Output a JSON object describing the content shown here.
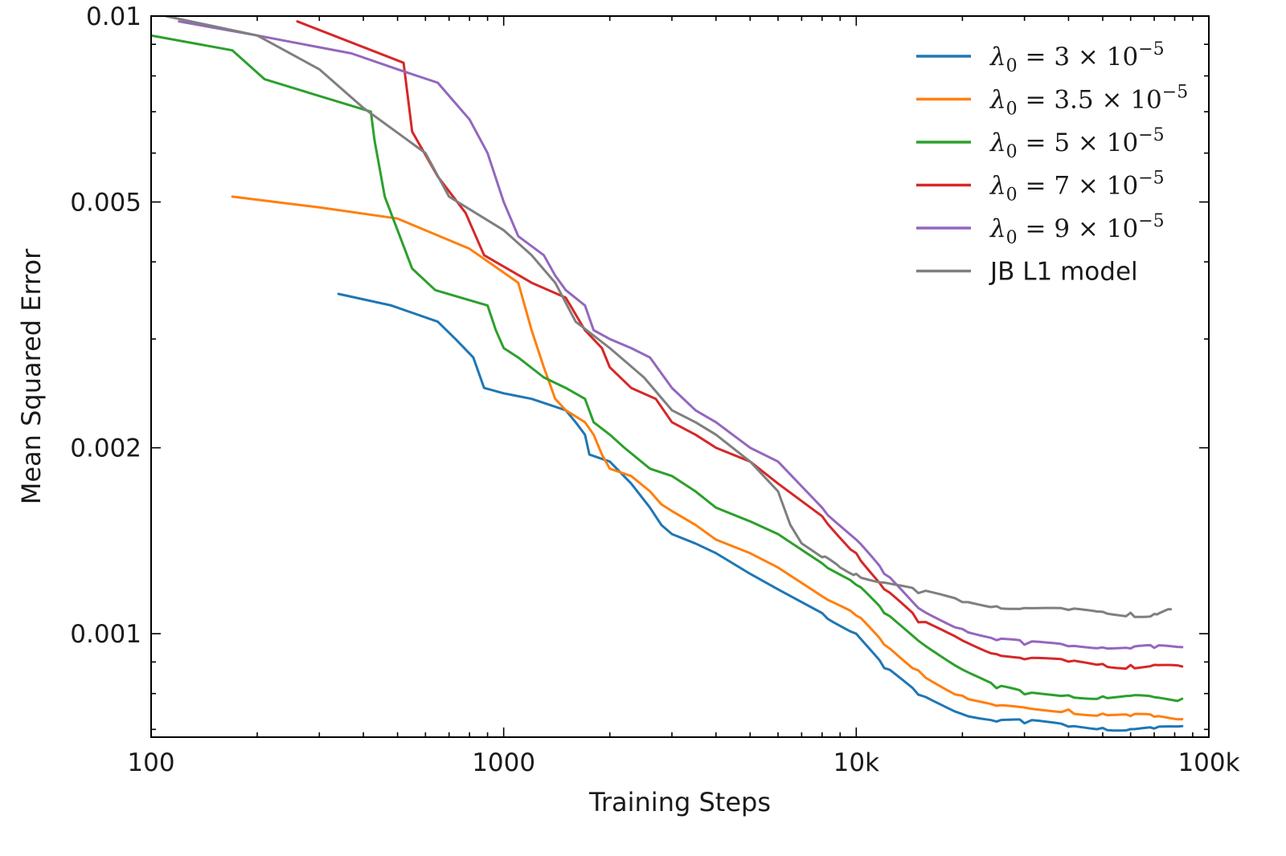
{
  "chart_data": {
    "type": "line",
    "title": "",
    "xlabel": "Training Steps",
    "ylabel": "Mean Squared Error",
    "xscale": "log",
    "yscale": "log",
    "xlim": [
      100,
      100000
    ],
    "ylim": [
      0.00068,
      0.01
    ],
    "xticks": [
      {
        "value": 100,
        "label": "100"
      },
      {
        "value": 1000,
        "label": "1000"
      },
      {
        "value": 10000,
        "label": "10k"
      },
      {
        "value": 100000,
        "label": "100k"
      }
    ],
    "yticks": [
      {
        "value": 0.001,
        "label": "0.001"
      },
      {
        "value": 0.002,
        "label": "0.002"
      },
      {
        "value": 0.005,
        "label": "0.005"
      },
      {
        "value": 0.01,
        "label": "0.01"
      }
    ],
    "grid": false,
    "legend_position": "top-right",
    "series": [
      {
        "name": "λ0 = 3 × 10−5",
        "legend": {
          "sym": "λ",
          "sub": "0",
          "rest": " = 3 × 10",
          "sup": "−5"
        },
        "color": "#1f77b4",
        "x": [
          340,
          480,
          650,
          730,
          820,
          880,
          1000,
          1200,
          1500,
          1600,
          1700,
          1750,
          2000,
          2300,
          2600,
          2800,
          3000,
          3500,
          4000,
          5000,
          6000,
          8000,
          10000,
          12000,
          15000,
          20000,
          25000,
          30000,
          40000,
          50000,
          60000,
          70000,
          84000
        ],
        "y": [
          0.00355,
          0.0034,
          0.0032,
          0.003,
          0.0028,
          0.0025,
          0.00245,
          0.0024,
          0.0023,
          0.0022,
          0.0021,
          0.00195,
          0.0019,
          0.00175,
          0.0016,
          0.0015,
          0.00145,
          0.0014,
          0.00135,
          0.00125,
          0.00118,
          0.00108,
          0.001,
          0.00088,
          0.0008,
          0.000745,
          0.000725,
          0.00072,
          0.00071,
          0.000705,
          0.0007,
          0.0007,
          0.000705
        ]
      },
      {
        "name": "λ0 = 3.5 × 10−5",
        "legend": {
          "sym": "λ",
          "sub": "0",
          "rest": " = 3.5 × 10",
          "sup": "−5"
        },
        "color": "#ff7f0e",
        "x": [
          170,
          300,
          500,
          800,
          1100,
          1200,
          1300,
          1400,
          1500,
          1700,
          1800,
          1900,
          2000,
          2300,
          2600,
          2800,
          3000,
          3500,
          4000,
          5000,
          6000,
          8000,
          10000,
          12000,
          15000,
          20000,
          25000,
          30000,
          40000,
          50000,
          60000,
          70000,
          84000
        ],
        "y": [
          0.0051,
          0.0049,
          0.0047,
          0.0042,
          0.0037,
          0.0031,
          0.0027,
          0.0024,
          0.0023,
          0.0022,
          0.0021,
          0.00195,
          0.00185,
          0.0018,
          0.0017,
          0.00162,
          0.00158,
          0.0015,
          0.00142,
          0.00135,
          0.00128,
          0.00115,
          0.00107,
          0.00096,
          0.00087,
          0.00079,
          0.00076,
          0.000755,
          0.00075,
          0.00074,
          0.000735,
          0.000735,
          0.00073
        ]
      },
      {
        "name": "λ0 = 5 × 10−5",
        "legend": {
          "sym": "λ",
          "sub": "0",
          "rest": " = 5 × 10",
          "sup": "−5"
        },
        "color": "#2ca02c",
        "x": [
          100,
          170,
          210,
          420,
          430,
          460,
          550,
          640,
          900,
          950,
          1000,
          1100,
          1300,
          1500,
          1700,
          1800,
          2000,
          2200,
          2600,
          3000,
          3500,
          4000,
          5000,
          6000,
          8000,
          10000,
          12000,
          15000,
          20000,
          25000,
          30000,
          40000,
          50000,
          60000,
          70000,
          84000
        ],
        "y": [
          0.0093,
          0.0088,
          0.0079,
          0.007,
          0.0063,
          0.0051,
          0.0039,
          0.0036,
          0.0034,
          0.0031,
          0.0029,
          0.0028,
          0.0026,
          0.0025,
          0.0024,
          0.0022,
          0.0021,
          0.002,
          0.00185,
          0.0018,
          0.0017,
          0.0016,
          0.00152,
          0.00145,
          0.0013,
          0.0012,
          0.00108,
          0.00098,
          0.00088,
          0.00082,
          0.0008,
          0.000795,
          0.00079,
          0.00079,
          0.000785,
          0.00078
        ]
      },
      {
        "name": "λ0 = 7 × 10−5",
        "legend": {
          "sym": "λ",
          "sub": "0",
          "rest": " = 7 × 10",
          "sup": "−5"
        },
        "color": "#d62728",
        "x": [
          260,
          520,
          550,
          650,
          780,
          880,
          1200,
          1500,
          1700,
          1900,
          2000,
          2300,
          2700,
          3000,
          3500,
          4000,
          5000,
          6000,
          8000,
          10000,
          12000,
          15000,
          20000,
          25000,
          30000,
          40000,
          50000,
          60000,
          70000,
          84000
        ],
        "y": [
          0.0098,
          0.0084,
          0.0065,
          0.0055,
          0.0048,
          0.0041,
          0.0037,
          0.0035,
          0.0031,
          0.0029,
          0.0027,
          0.0025,
          0.0024,
          0.0022,
          0.0021,
          0.002,
          0.0019,
          0.00175,
          0.00155,
          0.00135,
          0.00118,
          0.00105,
          0.00098,
          0.00093,
          0.00091,
          0.0009,
          0.00089,
          0.000885,
          0.000885,
          0.00088
        ]
      },
      {
        "name": "λ0 = 9 × 10−5",
        "legend": {
          "sym": "λ",
          "sub": "0",
          "rest": " = 9 × 10",
          "sup": "−5"
        },
        "color": "#9467bd",
        "x": [
          120,
          200,
          370,
          500,
          650,
          800,
          900,
          1000,
          1100,
          1300,
          1400,
          1500,
          1700,
          1800,
          2000,
          2300,
          2600,
          3000,
          3500,
          4000,
          5000,
          6000,
          8000,
          10000,
          12000,
          15000,
          20000,
          25000,
          30000,
          40000,
          50000,
          60000,
          70000,
          84000
        ],
        "y": [
          0.0098,
          0.0093,
          0.0087,
          0.0082,
          0.0078,
          0.0068,
          0.006,
          0.005,
          0.0044,
          0.0041,
          0.0038,
          0.0036,
          0.0034,
          0.0031,
          0.003,
          0.0029,
          0.0028,
          0.0025,
          0.0023,
          0.0022,
          0.002,
          0.0019,
          0.0016,
          0.00142,
          0.00125,
          0.0011,
          0.00102,
          0.00098,
          0.000965,
          0.00096,
          0.000955,
          0.00095,
          0.00095,
          0.00095
        ]
      },
      {
        "name": "JB L1 model",
        "legend": {
          "plain": "JB L1 model"
        },
        "color": "#7f7f7f",
        "x": [
          110,
          200,
          300,
          400,
          600,
          700,
          1000,
          1200,
          1400,
          1600,
          2000,
          2500,
          3000,
          3500,
          4000,
          5000,
          6000,
          6500,
          7000,
          8000,
          9000,
          10000,
          12000,
          15000,
          20000,
          25000,
          30000,
          40000,
          50000,
          60000,
          70000,
          78000
        ],
        "y": [
          0.01,
          0.0093,
          0.0082,
          0.0071,
          0.006,
          0.0051,
          0.0045,
          0.0041,
          0.0037,
          0.0032,
          0.0029,
          0.0026,
          0.0023,
          0.0022,
          0.0021,
          0.0019,
          0.0017,
          0.0015,
          0.0014,
          0.00133,
          0.00128,
          0.00125,
          0.00121,
          0.00117,
          0.00113,
          0.00111,
          0.0011,
          0.00109,
          0.00108,
          0.001075,
          0.00107,
          0.00109
        ]
      }
    ]
  }
}
